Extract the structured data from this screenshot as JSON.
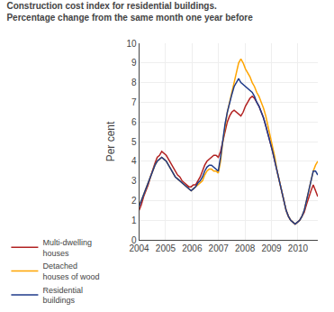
{
  "chart_data": {
    "type": "line",
    "title": "Construction cost index for residential buildings.",
    "subtitle": "Percentage change from the same month one year before",
    "y_label": "Per cent",
    "x": [
      2004,
      2004.0854,
      2004.1709,
      2004.2563,
      2004.3418,
      2004.4272,
      2004.5127,
      2004.5981,
      2004.6835,
      2004.769,
      2004.8544,
      2004.9399,
      2005.0253,
      2005.1108,
      2005.1962,
      2005.2816,
      2005.3671,
      2005.4525,
      2005.538,
      2005.6234,
      2005.7089,
      2005.7943,
      2005.8797,
      2005.9652,
      2006.0506,
      2006.1361,
      2006.2215,
      2006.307,
      2006.3924,
      2006.4778,
      2006.5633,
      2006.6487,
      2006.7342,
      2006.8196,
      2006.9051,
      2006.9905,
      2007.0759,
      2007.1614,
      2007.2468,
      2007.3323,
      2007.4177,
      2007.5032,
      2007.5886,
      2007.6741,
      2007.7595,
      2007.8449,
      2007.9304,
      2008.0158,
      2008.1013,
      2008.1867,
      2008.2722,
      2008.3576,
      2008.443,
      2008.5285,
      2008.6139,
      2008.6994,
      2008.7848,
      2008.8703,
      2008.9557,
      2009.0411,
      2009.1266,
      2009.212,
      2009.2975,
      2009.3829,
      2009.4684,
      2009.5538,
      2009.6392,
      2009.7247,
      2009.8101,
      2009.8956,
      2009.981,
      2010.0665,
      2010.1519,
      2010.2373,
      2010.3228,
      2010.4082,
      2010.4937,
      2010.5791,
      2010.6646,
      2010.75
    ],
    "series": [
      {
        "name": "Multi-dwelling\nhouses",
        "color": "#b22222",
        "values": [
          1.5,
          1.8,
          2.2,
          2.5,
          2.8,
          3.2,
          3.6,
          3.9,
          4.2,
          4.3,
          4.5,
          4.4,
          4.3,
          4.1,
          3.9,
          3.7,
          3.5,
          3.3,
          3.2,
          3.0,
          2.9,
          2.8,
          2.7,
          2.7,
          2.8,
          2.8,
          3.0,
          3.2,
          3.5,
          3.8,
          4.0,
          4.1,
          4.2,
          4.3,
          4.3,
          4.2,
          4.5,
          5.0,
          5.5,
          6.0,
          6.3,
          6.5,
          6.6,
          6.5,
          6.4,
          6.3,
          6.5,
          6.8,
          7.0,
          7.2,
          7.3,
          7.2,
          7.0,
          6.8,
          6.5,
          6.2,
          5.8,
          5.4,
          5.0,
          4.5,
          4.0,
          3.5,
          3.0,
          2.5,
          2.0,
          1.5,
          1.2,
          1.0,
          0.9,
          0.8,
          0.9,
          1.0,
          1.2,
          1.4,
          1.8,
          2.2,
          2.5,
          2.8,
          2.5,
          2.2
        ]
      },
      {
        "name": "Detached\nhouses of wood",
        "color": "#ffa500",
        "values": [
          1.8,
          2.0,
          2.3,
          2.6,
          2.9,
          3.2,
          3.5,
          3.8,
          4.0,
          4.1,
          4.2,
          4.1,
          4.0,
          3.8,
          3.6,
          3.4,
          3.2,
          3.1,
          3.0,
          2.9,
          2.8,
          2.7,
          2.6,
          2.5,
          2.6,
          2.7,
          2.8,
          2.9,
          3.0,
          3.3,
          3.5,
          3.6,
          3.6,
          3.5,
          3.5,
          3.4,
          4.0,
          5.0,
          5.8,
          6.5,
          7.0,
          7.5,
          8.0,
          8.5,
          9.0,
          9.2,
          9.0,
          8.7,
          8.5,
          8.3,
          8.0,
          7.8,
          7.5,
          7.3,
          7.0,
          6.7,
          6.3,
          5.8,
          5.3,
          4.8,
          4.2,
          3.5,
          3.0,
          2.5,
          2.0,
          1.5,
          1.2,
          1.0,
          0.9,
          0.8,
          0.9,
          1.0,
          1.2,
          1.5,
          2.0,
          2.5,
          3.0,
          3.5,
          3.8,
          4.0
        ]
      },
      {
        "name": "Residential\nbuildings",
        "color": "#1e3a8a",
        "values": [
          1.7,
          2.0,
          2.3,
          2.6,
          2.9,
          3.2,
          3.5,
          3.8,
          4.0,
          4.1,
          4.2,
          4.1,
          4.0,
          3.8,
          3.6,
          3.4,
          3.2,
          3.1,
          3.0,
          2.9,
          2.8,
          2.7,
          2.6,
          2.5,
          2.6,
          2.7,
          2.9,
          3.0,
          3.2,
          3.5,
          3.7,
          3.8,
          3.8,
          3.7,
          3.6,
          3.5,
          4.2,
          5.2,
          5.9,
          6.5,
          7.0,
          7.4,
          7.8,
          8.0,
          8.2,
          8.0,
          7.9,
          7.8,
          7.7,
          7.6,
          7.5,
          7.3,
          7.0,
          6.8,
          6.5,
          6.2,
          5.8,
          5.4,
          5.0,
          4.5,
          4.0,
          3.5,
          3.0,
          2.5,
          2.0,
          1.5,
          1.2,
          1.0,
          0.9,
          0.8,
          0.9,
          1.0,
          1.2,
          1.5,
          2.0,
          2.5,
          3.0,
          3.5,
          3.5,
          3.3
        ]
      }
    ],
    "xlim": [
      2004,
      2010.75
    ],
    "xticks": [
      2004,
      2005,
      2006,
      2007,
      2008,
      2009,
      2010
    ],
    "ylim": [
      0,
      10
    ],
    "yticks": [
      0,
      1,
      2,
      3,
      4,
      5,
      6,
      7,
      8,
      9,
      10
    ],
    "grid": true,
    "legend": "bottom"
  }
}
